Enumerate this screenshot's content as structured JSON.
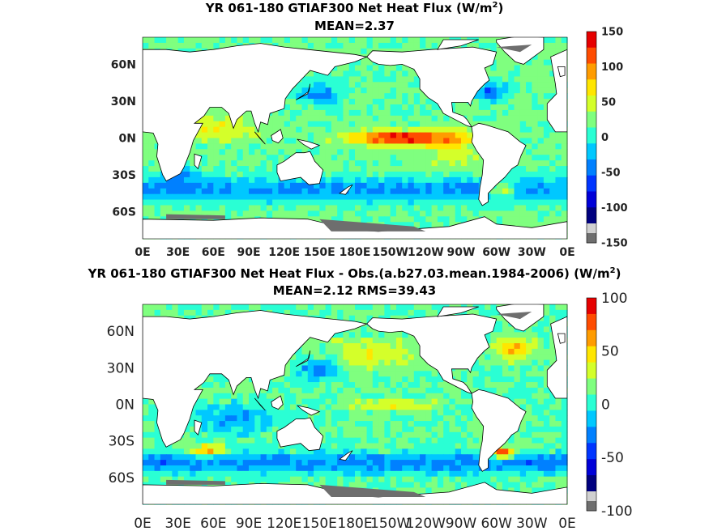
{
  "chart_data": [
    {
      "type": "heatmap",
      "title": "YR 061-180 GTIAF300  Net Heat Flux (W/m",
      "title_sup": "2",
      "title_end": ")",
      "subtitle": "MEAN=2.37",
      "xlabel": "",
      "ylabel": "",
      "x_ticks": [
        "0E",
        "30E",
        "60E",
        "90E",
        "120E",
        "150E",
        "180E",
        "150W",
        "120W",
        "90W",
        "60W",
        "30W",
        "0E"
      ],
      "y_ticks": [
        "60N",
        "30N",
        "0N",
        "30S",
        "60S"
      ],
      "colorbar_ticks": [
        "150",
        "100",
        "50",
        "0",
        "-50",
        "-100",
        "-150"
      ],
      "colorbar_range": [
        -150,
        150
      ],
      "colormap": [
        "#00007f",
        "#0000d8",
        "#0035ff",
        "#0080ff",
        "#00c8ff",
        "#2affd4",
        "#7fff7f",
        "#d4ff2a",
        "#ffe600",
        "#ff9c00",
        "#ff4c00",
        "#e60000"
      ],
      "colorbar_extra": [
        "#d0d0d0",
        "#6e6e6e"
      ],
      "colors": {
        "land": "#ffffff",
        "ice": "#6e6e6e"
      },
      "grid": false
    },
    {
      "type": "heatmap",
      "title": "YR 061-180 GTIAF300  Net Heat Flux - Obs.(a.b27.03.mean.1984-2006) (W/m",
      "title_sup": "2",
      "title_end": ")",
      "subtitle": "MEAN=2.12 RMS=39.43",
      "xlabel": "",
      "ylabel": "",
      "x_ticks": [
        "0E",
        "30E",
        "60E",
        "90E",
        "120E",
        "150E",
        "180E",
        "150W",
        "120W",
        "90W",
        "60W",
        "30W",
        "0E"
      ],
      "y_ticks": [
        "60N",
        "30N",
        "0N",
        "30S",
        "60S"
      ],
      "colorbar_ticks": [
        "100",
        "50",
        "0",
        "-50",
        "-100"
      ],
      "colorbar_range": [
        -100,
        100
      ],
      "colormap": [
        "#00007f",
        "#0000d8",
        "#0035ff",
        "#0080ff",
        "#00c8ff",
        "#2affd4",
        "#7fff7f",
        "#d4ff2a",
        "#ffe600",
        "#ff9c00",
        "#ff4c00",
        "#e60000"
      ],
      "colorbar_extra": [
        "#d0d0d0",
        "#6e6e6e"
      ],
      "colors": {
        "land": "#ffffff",
        "ice": "#6e6e6e"
      },
      "grid": false
    }
  ]
}
